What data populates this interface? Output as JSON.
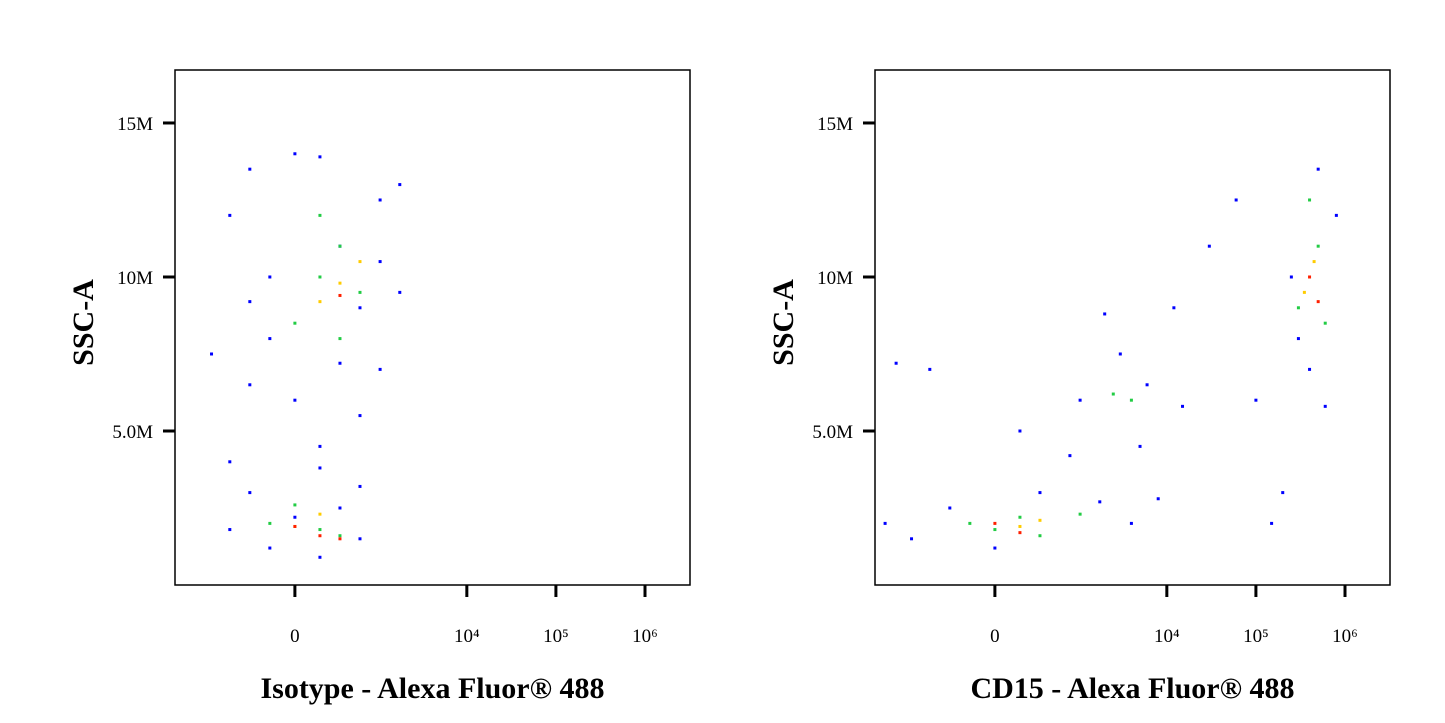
{
  "chart_data": [
    {
      "type": "scatter",
      "xlabel": "Isotype - Alexa Fluor® 488",
      "ylabel": "SSC-A",
      "xscale": "biexponential",
      "xlim": [
        -2600,
        3200000
      ],
      "ylim": [
        0,
        16720000
      ],
      "xticks": [
        0,
        {
          "value": 10000,
          "label": "10⁴"
        },
        {
          "value": 100000,
          "label": "10⁵"
        },
        {
          "value": 1000000,
          "label": "10⁶"
        }
      ],
      "yticks": [
        {
          "value": 5000000,
          "label": "5.0M"
        },
        {
          "value": 10000000,
          "label": "10M"
        },
        {
          "value": 15000000,
          "label": "15M"
        }
      ],
      "series": [
        {
          "color": "#0000ff",
          "x": [
            -610,
            -340,
            -163,
            0,
            163,
            340,
            610,
            1050,
            -340,
            -163,
            163,
            340,
            610,
            1050,
            1760,
            -610,
            -340,
            0,
            163,
            610,
            -163,
            340,
            1050,
            -340,
            0,
            610,
            -610,
            163,
            1760,
            -1000
          ],
          "values": [
            12000000,
            13500000,
            8000000,
            6000000,
            4500000,
            11000000,
            9000000,
            7000000,
            3000000,
            1200000,
            900000,
            2500000,
            1500000,
            12500000,
            13000000,
            4000000,
            6500000,
            14000000,
            3800000,
            5500000,
            10000000,
            7200000,
            10500000,
            9200000,
            2200000,
            3200000,
            1800000,
            13900000,
            9500000,
            7500000
          ]
        },
        {
          "color": "#22cc44",
          "x": [
            163,
            340,
            610,
            0,
            340,
            163,
            -163,
            0,
            340,
            163
          ],
          "values": [
            10000000,
            11000000,
            9500000,
            8500000,
            8000000,
            1800000,
            2000000,
            2600000,
            1600000,
            12000000
          ]
        },
        {
          "color": "#ffcc00",
          "x": [
            340,
            163,
            610,
            0,
            163
          ],
          "values": [
            9800000,
            9200000,
            10500000,
            1900000,
            2300000
          ]
        },
        {
          "color": "#ff2000",
          "x": [
            163,
            340,
            0,
            340
          ],
          "values": [
            1600000,
            1500000,
            1900000,
            9400000
          ]
        }
      ]
    },
    {
      "type": "scatter",
      "xlabel": "CD15 - Alexa Fluor® 488",
      "ylabel": "SSC-A",
      "xscale": "biexponential",
      "xlim": [
        -2600,
        3200000
      ],
      "ylim": [
        0,
        16720000
      ],
      "xticks": [
        0,
        {
          "value": 10000,
          "label": "10⁴"
        },
        {
          "value": 100000,
          "label": "10⁵"
        },
        {
          "value": 1000000,
          "label": "10⁶"
        }
      ],
      "yticks": [
        {
          "value": 5000000,
          "label": "5.0M"
        },
        {
          "value": 10000000,
          "label": "10M"
        },
        {
          "value": 15000000,
          "label": "15M"
        }
      ],
      "series": [
        {
          "color": "#0000ff",
          "x": [
            -2000,
            -1000,
            -340,
            0,
            340,
            1760,
            4000,
            8000,
            -610,
            163,
            1050,
            3000,
            6000,
            15000,
            2000,
            800,
            5000,
            30000,
            100000,
            200000,
            300000,
            500000,
            800000,
            400000,
            600000,
            250000,
            12000,
            -1500,
            60000,
            150000
          ],
          "values": [
            2000000,
            1500000,
            2500000,
            1200000,
            3000000,
            2700000,
            2000000,
            2800000,
            7000000,
            5000000,
            6000000,
            7500000,
            6500000,
            5800000,
            8800000,
            4200000,
            4500000,
            11000000,
            6000000,
            3000000,
            8000000,
            13500000,
            12000000,
            7000000,
            5800000,
            10000000,
            9000000,
            7200000,
            12500000,
            2000000
          ]
        },
        {
          "color": "#22cc44",
          "x": [
            0,
            163,
            340,
            -163,
            1050,
            2500,
            4000,
            300000,
            500000,
            400000,
            600000
          ],
          "values": [
            1800000,
            2200000,
            1600000,
            2000000,
            2300000,
            6200000,
            6000000,
            9000000,
            11000000,
            12500000,
            8500000
          ]
        },
        {
          "color": "#ffcc00",
          "x": [
            163,
            340,
            450000,
            350000
          ],
          "values": [
            1900000,
            2100000,
            10500000,
            9500000
          ]
        },
        {
          "color": "#ff2000",
          "x": [
            163,
            0,
            400000,
            500000
          ],
          "values": [
            1700000,
            2000000,
            10000000,
            9200000
          ]
        }
      ]
    }
  ]
}
